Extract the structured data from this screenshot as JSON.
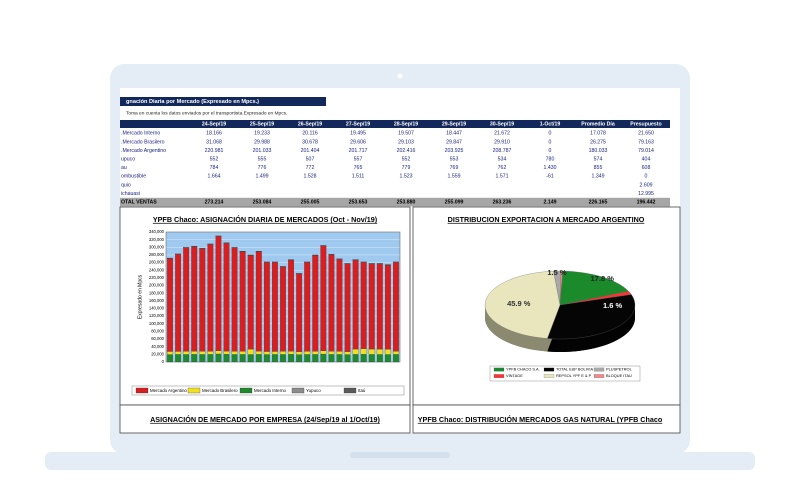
{
  "table": {
    "title": "gnación Diaria por Mercado (Expresado en Mpcs.)",
    "note": "Toma en cuenta los datos enviados por el transportista.Expresado en Mpcs.",
    "headers": [
      "24-Sep/19",
      "25-Sep/19",
      "26-Sep/19",
      "27-Sep/19",
      "28-Sep/19",
      "29-Sep/19",
      "30-Sep/19",
      "1-Oct/19",
      "Promedio Día",
      "Presupuesto"
    ],
    "rows": [
      {
        "label": ".Mercado Interno",
        "cells": [
          "18.166",
          "19.233",
          "20.116",
          "19.495",
          "19.507",
          "18.447",
          "21.672",
          "0",
          "17.078",
          "21.650"
        ]
      },
      {
        "label": ".Mercado Brasilero",
        "cells": [
          "31.068",
          "29.988",
          "30.678",
          "29.606",
          "29.103",
          "29.847",
          "29.910",
          "0",
          "26.275",
          "79.163"
        ]
      },
      {
        "label": ".Mercado Argentino",
        "cells": [
          "220.981",
          "201.033",
          "201.404",
          "201.717",
          "202.416",
          "203.925",
          "208.787",
          "0",
          "180.033",
          "79.014"
        ]
      },
      {
        "label": "upuco",
        "cells": [
          "552",
          "555",
          "507",
          "557",
          "552",
          "553",
          "534",
          "780",
          "574",
          "404"
        ]
      },
      {
        "label": "au",
        "cells": [
          "784",
          "776",
          "772",
          "765",
          "779",
          "769",
          "762",
          "1.430",
          "855",
          "608"
        ]
      },
      {
        "label": "ombustible",
        "cells": [
          "1.664",
          "1.499",
          "1.528",
          "1.511",
          "1.523",
          "1.559",
          "1.571",
          "-61",
          "1.349",
          "0"
        ]
      },
      {
        "label": "quio",
        "cells": [
          null,
          null,
          null,
          null,
          null,
          null,
          null,
          null,
          null,
          "2.609"
        ]
      },
      {
        "label": "ichauasi",
        "cells": [
          null,
          null,
          null,
          null,
          null,
          null,
          null,
          null,
          null,
          "12.995"
        ]
      },
      {
        "label": "OTAL VENTAS",
        "cells": [
          "273.214",
          "253.084",
          "255.005",
          "253.653",
          "253.880",
          "255.099",
          "263.236",
          "2.149",
          "226.165",
          "196.442"
        ]
      }
    ]
  },
  "chart_data": [
    {
      "type": "bar",
      "title": "YPFB Chaco: ASIGNACIÓN DIARIA DE MERCADOS  (Oct - Nov/19)",
      "y_label": "Expresado en Mpcs",
      "categories": [
        null,
        null,
        null,
        null,
        null,
        null,
        null,
        null,
        null,
        null,
        null,
        null,
        null,
        null,
        null,
        null,
        null,
        null,
        null,
        null,
        null,
        null,
        null,
        null,
        null,
        null,
        null,
        null,
        null
      ],
      "stacked": true,
      "legend": "bottom",
      "ylim": [
        0,
        340000
      ],
      "yticks": [
        {
          "value": 0,
          "label": "0"
        },
        {
          "value": 20000,
          "label": "20,000"
        },
        {
          "value": 40000,
          "label": "40,000"
        },
        {
          "value": 60000,
          "label": "60,000"
        },
        {
          "value": 80000,
          "label": "80,000"
        },
        {
          "value": 100000,
          "label": "100,000"
        },
        {
          "value": 120000,
          "label": "120,000"
        },
        {
          "value": 140000,
          "label": "140,000"
        },
        {
          "value": 160000,
          "label": "160,000"
        },
        {
          "value": 180000,
          "label": "180,000"
        },
        {
          "value": 200000,
          "label": "200,000"
        },
        {
          "value": 220000,
          "label": "220,000"
        },
        {
          "value": 240000,
          "label": "240,000"
        },
        {
          "value": 260000,
          "label": "260,000"
        },
        {
          "value": 280000,
          "label": "280,000"
        },
        {
          "value": 300000,
          "label": "300,000"
        },
        {
          "value": 320000,
          "label": "320,000"
        },
        {
          "value": 340000,
          "label": "340,000"
        }
      ],
      "grid": true,
      "series": [
        {
          "name": "Mercado Argentino",
          "color": "#d81e1e",
          "values": [
            243164,
            254064,
            270664,
            273464,
            268664,
            279864,
            299364,
            282164,
            270864,
            260864,
            244964,
            260164,
            233264,
            233164,
            220564,
            238264,
            203864,
            232864,
            250864,
            274564,
            252564,
            240964,
            229564,
            232864,
            225864,
            222864,
            222964,
            220364,
            232564
          ]
        },
        {
          "name": "Mercado Brasilero",
          "color": "#f0e020",
          "values": [
            8000,
            7500,
            8200,
            7800,
            8100,
            7600,
            8300,
            7900,
            8000,
            7700,
            14000,
            8200,
            7800,
            7600,
            8100,
            7900,
            7400,
            8000,
            7600,
            8300,
            8000,
            7800,
            7600,
            13500,
            14200,
            13800,
            13900,
            13600,
            8000
          ]
        },
        {
          "name": "Mercado Interno",
          "color": "#1f8a2c",
          "values": [
            19500,
            20100,
            19800,
            20400,
            19900,
            20200,
            21000,
            20600,
            19800,
            20100,
            19700,
            20300,
            19600,
            19900,
            20000,
            20500,
            19400,
            19800,
            20200,
            20800,
            20100,
            19900,
            19500,
            20300,
            20600,
            20000,
            19800,
            19700,
            20100
          ]
        },
        {
          "name": "Yupuco",
          "color": "#8c8c8c",
          "values": [
            552,
            552,
            552,
            552,
            552,
            552,
            552,
            552,
            552,
            552,
            552,
            552,
            552,
            552,
            552,
            552,
            552,
            552,
            552,
            552,
            552,
            552,
            552,
            552,
            552,
            552,
            552,
            552,
            552
          ]
        },
        {
          "name": "Itaú",
          "color": "#5a5a5a",
          "values": [
            784,
            784,
            784,
            784,
            784,
            784,
            784,
            784,
            784,
            784,
            784,
            784,
            784,
            784,
            784,
            784,
            784,
            784,
            784,
            784,
            784,
            784,
            784,
            784,
            784,
            784,
            784,
            784,
            784
          ]
        }
      ]
    },
    {
      "type": "pie",
      "title": "DISTRIBUCION  EXPORTACION A MERCADO ARGENTINO",
      "labels": [
        "YPFB CHACO S.A.",
        "TOTAL E&P BOLIVIA",
        "PLUSPETROL",
        "VINTAGE",
        "REPSOL YPF E & P",
        "BLOQUE ITAU"
      ],
      "values": [
        17.8,
        32.7,
        1.5,
        1.6,
        45.9,
        0.5
      ],
      "value_labels": [
        "17.8 %",
        null,
        "1.5 %",
        "1.6 %",
        "45.9 %",
        null
      ],
      "colors": [
        "#1a8a2a",
        "#050505",
        "#a8a8a8",
        "#ff3030",
        "#e9e5bd",
        "#f08a8a"
      ]
    }
  ],
  "sections": [
    "ASIGNACIÓN DE MERCADO POR EMPRESA (24/Sep/19 al 1/Oct/19)",
    "YPFB Chaco: DISTRIBUCIÓN MERCADOS GAS NATURAL (YPFB Chaco"
  ]
}
